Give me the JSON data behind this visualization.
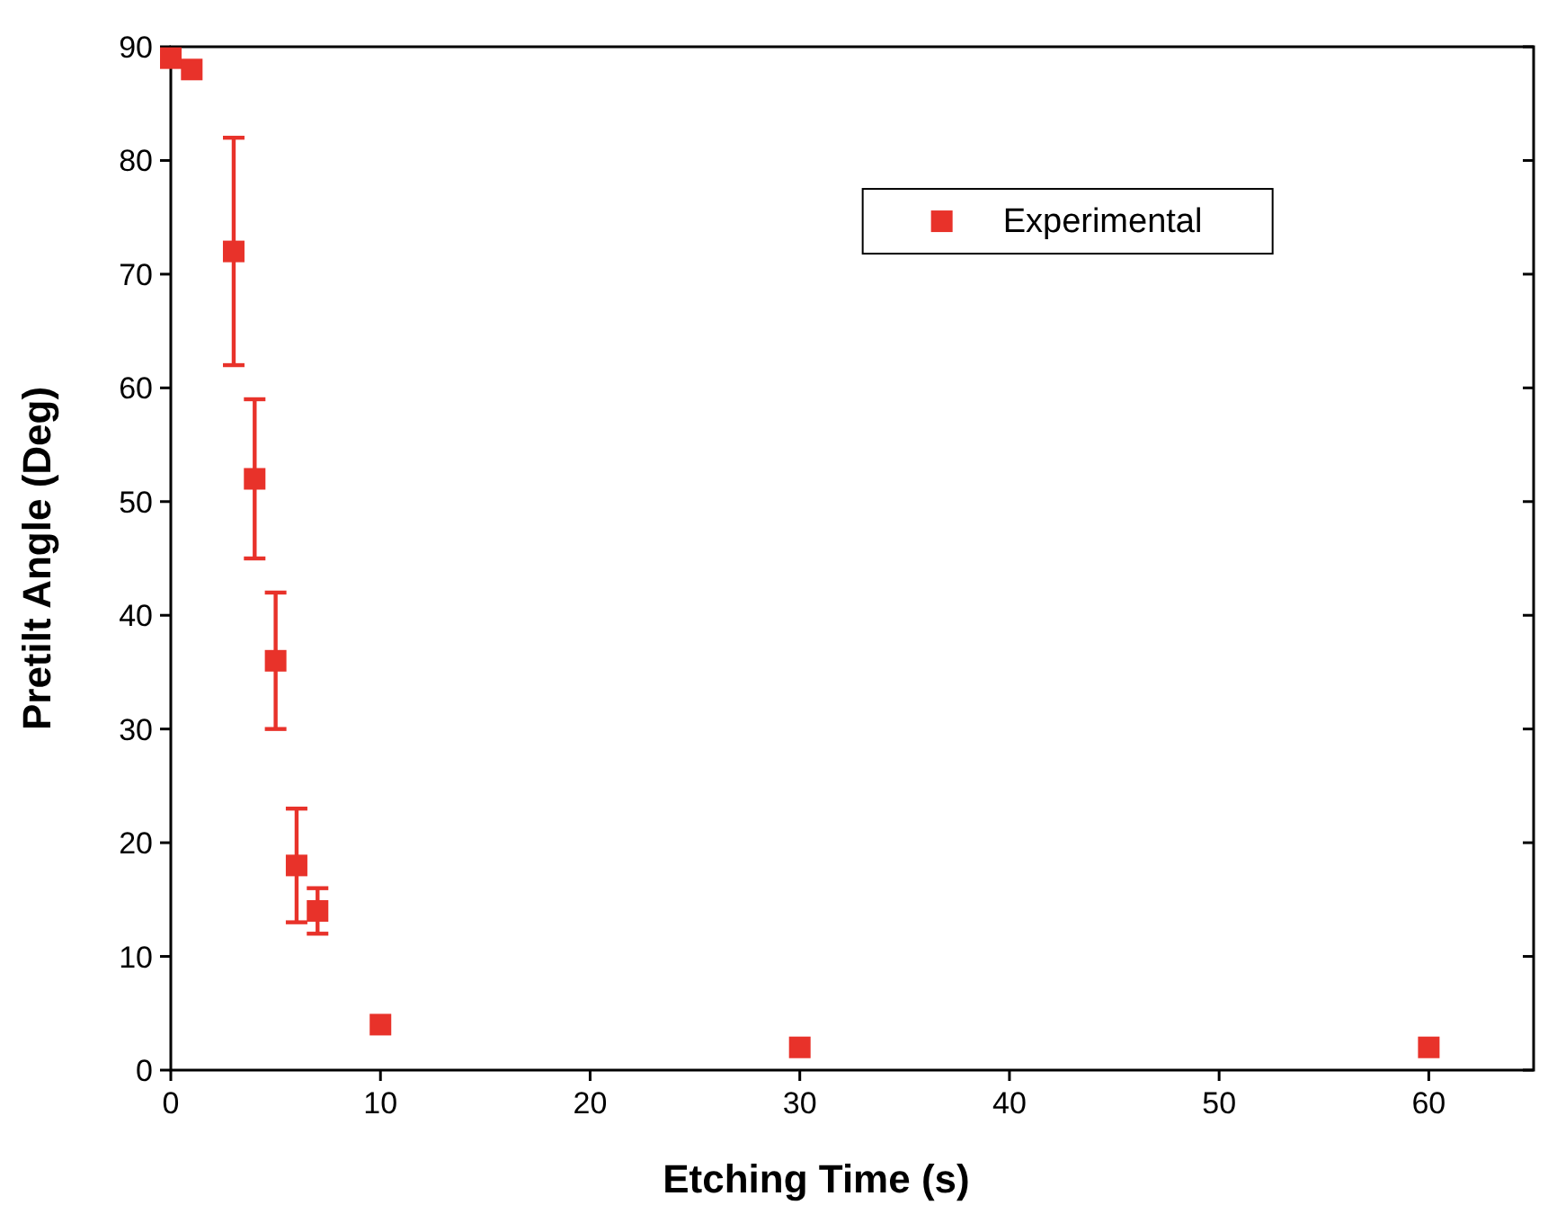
{
  "chart_data": {
    "type": "scatter",
    "xlabel": "Etching Time (s)",
    "ylabel": "Pretilt Angle (Deg)",
    "x": [
      0,
      1,
      3,
      4,
      5,
      6,
      7,
      10,
      30,
      60
    ],
    "series": [
      {
        "name": "Experimental",
        "color": "#e8322a",
        "values": [
          89,
          88,
          72,
          52,
          36,
          18,
          14,
          4,
          2,
          2
        ],
        "errors": [
          null,
          null,
          [
            62,
            82
          ],
          [
            45,
            59
          ],
          [
            30,
            42
          ],
          [
            13,
            23
          ],
          [
            12,
            16
          ],
          null,
          null,
          null
        ]
      }
    ],
    "xlim": [
      0,
      65
    ],
    "ylim": [
      0,
      90
    ],
    "xticks": [
      0,
      10,
      20,
      30,
      40,
      50,
      60
    ],
    "yticks": [
      0,
      10,
      20,
      30,
      40,
      50,
      60,
      70,
      80,
      90
    ],
    "marker": "square",
    "legend": "top right",
    "grid": false
  }
}
